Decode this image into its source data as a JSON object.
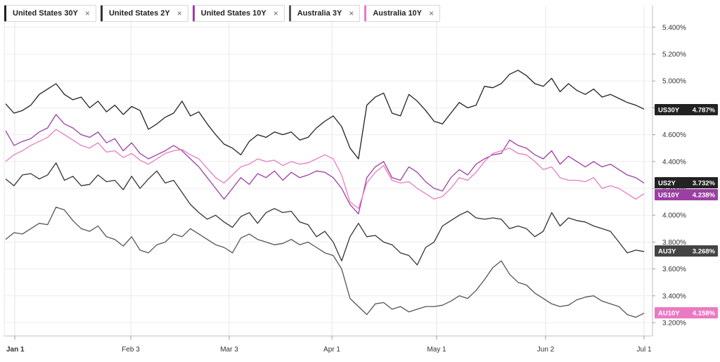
{
  "chart_data": {
    "type": "line",
    "y_axis_side": "right",
    "ylim": [
      3.12,
      5.52
    ],
    "y_ticks": [
      "3.200%",
      "3.400%",
      "3.600%",
      "3.800%",
      "4.000%",
      "4.200%",
      "4.400%",
      "4.600%",
      "4.800%",
      "5.000%",
      "5.200%",
      "5.400%"
    ],
    "x_ticks": [
      "Jan 1",
      "Feb 3",
      "Mar 3",
      "Apr 1",
      "May 1",
      "Jun 2",
      "Jul 1"
    ],
    "grid": true,
    "legend_placement": "top-left",
    "series": [
      {
        "name": "United States 30Y",
        "badge": "US30Y",
        "value_label": "4.787%",
        "color": "#222222",
        "values": [
          4.83,
          4.76,
          4.78,
          4.82,
          4.9,
          4.94,
          4.98,
          4.9,
          4.86,
          4.88,
          4.8,
          4.85,
          4.77,
          4.82,
          4.75,
          4.81,
          4.78,
          4.64,
          4.68,
          4.73,
          4.76,
          4.85,
          4.74,
          4.77,
          4.68,
          4.6,
          4.53,
          4.5,
          4.45,
          4.55,
          4.6,
          4.58,
          4.62,
          4.6,
          4.62,
          4.56,
          4.58,
          4.65,
          4.7,
          4.74,
          4.66,
          4.5,
          4.42,
          4.82,
          4.88,
          4.91,
          4.76,
          4.74,
          4.9,
          4.85,
          4.78,
          4.7,
          4.68,
          4.76,
          4.84,
          4.8,
          4.82,
          4.96,
          4.95,
          4.98,
          5.05,
          5.08,
          5.04,
          4.98,
          4.96,
          5.02,
          4.92,
          4.98,
          4.93,
          4.9,
          4.94,
          4.88,
          4.9,
          4.87,
          4.84,
          4.82,
          4.79
        ]
      },
      {
        "name": "United States 2Y",
        "badge": "US2Y",
        "value_label": "3.732%",
        "color": "#333333",
        "values": [
          4.27,
          4.22,
          4.3,
          4.31,
          4.27,
          4.3,
          4.39,
          4.26,
          4.29,
          4.22,
          4.23,
          4.3,
          4.25,
          4.26,
          4.19,
          4.29,
          4.2,
          4.27,
          4.33,
          4.24,
          4.26,
          4.17,
          4.08,
          4.02,
          3.97,
          4.0,
          3.95,
          3.91,
          3.99,
          4.02,
          3.94,
          4.02,
          4.05,
          4.02,
          4.03,
          3.95,
          3.93,
          3.84,
          3.88,
          3.8,
          3.66,
          3.84,
          3.94,
          3.84,
          3.85,
          3.8,
          3.78,
          3.72,
          3.7,
          3.63,
          3.76,
          3.8,
          3.92,
          3.96,
          4.0,
          4.03,
          3.98,
          3.97,
          3.98,
          3.97,
          3.9,
          3.92,
          3.9,
          3.84,
          3.88,
          4.02,
          3.92,
          3.98,
          3.96,
          3.95,
          3.92,
          3.9,
          3.88,
          3.8,
          3.72,
          3.74,
          3.73
        ]
      },
      {
        "name": "United States 10Y",
        "badge": "US10Y",
        "value_label": "4.238%",
        "color": "#9b3fa3",
        "values": [
          4.63,
          4.52,
          4.55,
          4.57,
          4.62,
          4.65,
          4.75,
          4.68,
          4.65,
          4.6,
          4.58,
          4.62,
          4.54,
          4.57,
          4.48,
          4.54,
          4.46,
          4.42,
          4.45,
          4.48,
          4.52,
          4.48,
          4.42,
          4.36,
          4.28,
          4.2,
          4.12,
          4.2,
          4.28,
          4.23,
          4.31,
          4.28,
          4.33,
          4.26,
          4.32,
          4.28,
          4.3,
          4.33,
          4.32,
          4.28,
          4.2,
          4.08,
          4.01,
          4.28,
          4.36,
          4.4,
          4.28,
          4.26,
          4.36,
          4.32,
          4.25,
          4.2,
          4.18,
          4.28,
          4.34,
          4.3,
          4.38,
          4.42,
          4.45,
          4.46,
          4.56,
          4.52,
          4.5,
          4.45,
          4.42,
          4.48,
          4.38,
          4.44,
          4.4,
          4.36,
          4.4,
          4.36,
          4.38,
          4.34,
          4.3,
          4.28,
          4.24
        ]
      },
      {
        "name": "Australia 3Y",
        "badge": "AU3Y",
        "value_label": "3.268%",
        "color": "#555555",
        "values": [
          3.82,
          3.87,
          3.86,
          3.9,
          3.94,
          3.93,
          4.06,
          4.04,
          3.96,
          3.9,
          3.88,
          3.92,
          3.84,
          3.82,
          3.77,
          3.84,
          3.74,
          3.72,
          3.78,
          3.8,
          3.86,
          3.84,
          3.9,
          3.86,
          3.82,
          3.78,
          3.76,
          3.72,
          3.83,
          3.86,
          3.82,
          3.8,
          3.78,
          3.79,
          3.82,
          3.78,
          3.8,
          3.76,
          3.72,
          3.7,
          3.6,
          3.38,
          3.32,
          3.26,
          3.34,
          3.35,
          3.3,
          3.32,
          3.28,
          3.3,
          3.32,
          3.32,
          3.33,
          3.36,
          3.4,
          3.38,
          3.44,
          3.52,
          3.61,
          3.66,
          3.56,
          3.5,
          3.48,
          3.42,
          3.38,
          3.34,
          3.32,
          3.33,
          3.37,
          3.39,
          3.4,
          3.36,
          3.34,
          3.32,
          3.26,
          3.24,
          3.27
        ]
      },
      {
        "name": "Australia 10Y",
        "badge": "AU10Y",
        "value_label": "4.158%",
        "color": "#e97bc3",
        "values": [
          4.4,
          4.45,
          4.48,
          4.52,
          4.55,
          4.58,
          4.64,
          4.6,
          4.56,
          4.52,
          4.5,
          4.54,
          4.47,
          4.48,
          4.43,
          4.46,
          4.41,
          4.38,
          4.42,
          4.46,
          4.48,
          4.49,
          4.45,
          4.42,
          4.35,
          4.28,
          4.24,
          4.3,
          4.36,
          4.38,
          4.42,
          4.4,
          4.41,
          4.37,
          4.4,
          4.38,
          4.39,
          4.42,
          4.45,
          4.42,
          4.3,
          4.1,
          4.05,
          4.24,
          4.32,
          4.37,
          4.26,
          4.24,
          4.25,
          4.2,
          4.16,
          4.12,
          4.14,
          4.2,
          4.28,
          4.26,
          4.32,
          4.4,
          4.46,
          4.48,
          4.5,
          4.46,
          4.45,
          4.4,
          4.34,
          4.36,
          4.28,
          4.26,
          4.26,
          4.25,
          4.28,
          4.2,
          4.22,
          4.2,
          4.16,
          4.12,
          4.16
        ]
      }
    ]
  }
}
